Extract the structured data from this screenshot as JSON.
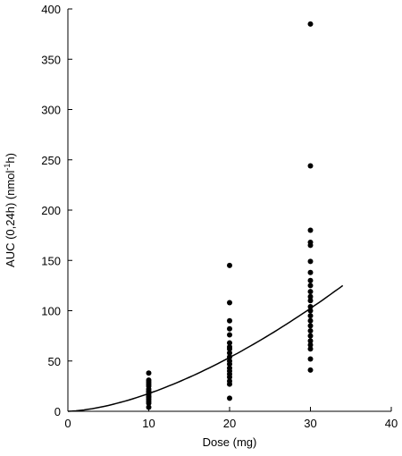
{
  "chart_data": {
    "type": "scatter",
    "title": "",
    "xlabel": "Dose (mg)",
    "ylabel": "AUC (0,24h) (nmol",
    "ylabel_superscript": "-1",
    "ylabel_suffix": "h)",
    "xlim": [
      0,
      40
    ],
    "ylim": [
      0,
      400
    ],
    "xticks": [
      0,
      10,
      20,
      30,
      40
    ],
    "yticks": [
      0,
      50,
      100,
      150,
      200,
      250,
      300,
      350,
      400
    ],
    "xtick_labels": [
      "0",
      "10",
      "20",
      "30",
      "40"
    ],
    "ytick_labels": [
      "0",
      "50",
      "100",
      "150",
      "200",
      "250",
      "300",
      "350",
      "400"
    ],
    "grid": false,
    "point_color": "#000000",
    "series": [
      {
        "values": [
          [
            10,
            38
          ],
          [
            10,
            31
          ],
          [
            10,
            29
          ],
          [
            10,
            27
          ],
          [
            10,
            25
          ],
          [
            10,
            22
          ],
          [
            10,
            20
          ],
          [
            10,
            19
          ],
          [
            10,
            17
          ],
          [
            10,
            15
          ],
          [
            10,
            14
          ],
          [
            10,
            12
          ],
          [
            10,
            10
          ],
          [
            10,
            8
          ],
          [
            10,
            4
          ],
          [
            20,
            145
          ],
          [
            20,
            108
          ],
          [
            20,
            90
          ],
          [
            20,
            82
          ],
          [
            20,
            76
          ],
          [
            20,
            68
          ],
          [
            20,
            64
          ],
          [
            20,
            62
          ],
          [
            20,
            58
          ],
          [
            20,
            54
          ],
          [
            20,
            50
          ],
          [
            20,
            47
          ],
          [
            20,
            43
          ],
          [
            20,
            40
          ],
          [
            20,
            37
          ],
          [
            20,
            34
          ],
          [
            20,
            30
          ],
          [
            20,
            27
          ],
          [
            20,
            13
          ],
          [
            30,
            385
          ],
          [
            30,
            244
          ],
          [
            30,
            180
          ],
          [
            30,
            168
          ],
          [
            30,
            165
          ],
          [
            30,
            149
          ],
          [
            30,
            138
          ],
          [
            30,
            130
          ],
          [
            30,
            125
          ],
          [
            30,
            119
          ],
          [
            30,
            114
          ],
          [
            30,
            110
          ],
          [
            30,
            104
          ],
          [
            30,
            100
          ],
          [
            30,
            95
          ],
          [
            30,
            90
          ],
          [
            30,
            85
          ],
          [
            30,
            80
          ],
          [
            30,
            75
          ],
          [
            30,
            70
          ],
          [
            30,
            66
          ],
          [
            30,
            62
          ],
          [
            30,
            52
          ],
          [
            30,
            41
          ]
        ]
      }
    ],
    "fit_curve": {
      "x": [
        0,
        2,
        4,
        6,
        8,
        10,
        12,
        14,
        16,
        18,
        20,
        22,
        24,
        26,
        28,
        30,
        32,
        34
      ],
      "y": [
        0,
        1.5,
        4.3,
        7.9,
        12.2,
        17.1,
        22.5,
        28.4,
        34.7,
        41.4,
        48.5,
        55.9,
        63.7,
        71.8,
        80.2,
        88.9,
        97.9,
        125
      ]
    }
  }
}
